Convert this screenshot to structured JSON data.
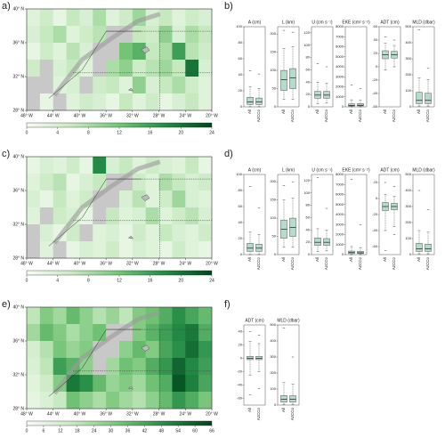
{
  "panels": [
    {
      "label": "a)",
      "type": "heatmap",
      "xlim": [
        -48,
        -20
      ],
      "ylim": [
        28,
        40
      ],
      "xticks": [
        {
          "value": -48,
          "label": "48° W"
        },
        {
          "value": -44,
          "label": "44° W"
        },
        {
          "value": -40,
          "label": "40° W"
        },
        {
          "value": -36,
          "label": "36° W"
        },
        {
          "value": -32,
          "label": "32° W"
        },
        {
          "value": -28,
          "label": "28° W"
        },
        {
          "value": -24,
          "label": "24° W"
        },
        {
          "value": -20,
          "label": "20° W"
        }
      ],
      "yticks": [
        {
          "value": 28,
          "label": "28° N"
        },
        {
          "value": 32,
          "label": "32° N"
        },
        {
          "value": 36,
          "label": "36° N"
        },
        {
          "value": 40,
          "label": "40° N"
        }
      ],
      "colormap": [
        "#f7fcf5",
        "#c7e9c0",
        "#74c476",
        "#238b45",
        "#00441b"
      ],
      "nodata_color": "#c8c8c8",
      "grid": [
        [
          3,
          5,
          2,
          6,
          4,
          8,
          3,
          5,
          9,
          4,
          6,
          3,
          5,
          4
        ],
        [
          4,
          6,
          8,
          3,
          5,
          7,
          null,
          null,
          6,
          5,
          10,
          4,
          8,
          6
        ],
        [
          2,
          5,
          3,
          7,
          4,
          null,
          null,
          12,
          14,
          6,
          8,
          16,
          7,
          5
        ],
        [
          5,
          null,
          4,
          6,
          3,
          null,
          8,
          10,
          5,
          7,
          9,
          6,
          20,
          4
        ],
        [
          null,
          null,
          3,
          4,
          null,
          5,
          6,
          3,
          10,
          4,
          6,
          8,
          5,
          3
        ],
        [
          null,
          2,
          null,
          3,
          5,
          4,
          2,
          6,
          3,
          5,
          2,
          4,
          6,
          3
        ]
      ],
      "colorbar": {
        "lim": [
          0,
          24
        ],
        "ticks": [
          0,
          4,
          8,
          12,
          16,
          20,
          24
        ]
      }
    },
    {
      "label": "b)",
      "type": "boxplot",
      "categories": [
        "All",
        "AzCCo"
      ],
      "color": "#b5dcca",
      "subplots": [
        {
          "title": "A (cm)",
          "ylim": [
            0,
            100
          ],
          "yticks": [
            0,
            20,
            40,
            60,
            80,
            100
          ],
          "boxes": [
            {
              "whislo": 0,
              "q1": 3,
              "med": 6,
              "q3": 12,
              "whishi": 25,
              "outliers": [
                45
              ]
            },
            {
              "whislo": 0,
              "q1": 3,
              "med": 6,
              "q3": 11,
              "whishi": 23,
              "outliers": [
                41
              ]
            }
          ]
        },
        {
          "title": "L (km)",
          "ylim": [
            0,
            220
          ],
          "yticks": [
            0,
            50,
            100,
            150,
            200
          ],
          "boxes": [
            {
              "whislo": 20,
              "q1": 45,
              "med": 75,
              "q3": 100,
              "whishi": 160,
              "outliers": [
                210
              ]
            },
            {
              "whislo": 20,
              "q1": 50,
              "med": 80,
              "q3": 105,
              "whishi": 165,
              "outliers": [
                205
              ]
            }
          ]
        },
        {
          "title": "U (cm s⁻¹)",
          "ylim": [
            0,
            130
          ],
          "yticks": [
            0,
            20,
            40,
            60,
            80,
            100,
            120
          ],
          "boxes": [
            {
              "whislo": 5,
              "q1": 14,
              "med": 19,
              "q3": 25,
              "whishi": 40,
              "outliers": [
                70
              ]
            },
            {
              "whislo": 6,
              "q1": 14,
              "med": 19,
              "q3": 25,
              "whishi": 38,
              "outliers": [
                65
              ]
            }
          ]
        },
        {
          "title": "EKE (cm² s⁻²)",
          "ylim": [
            0,
            8000
          ],
          "yticks": [
            0,
            1000,
            2000,
            3000,
            4000,
            5000,
            6000,
            7000,
            8000
          ],
          "boxes": [
            {
              "whislo": 0,
              "q1": 80,
              "med": 150,
              "q3": 300,
              "whishi": 700,
              "outliers": [
                2200
              ]
            },
            {
              "whislo": 0,
              "q1": 90,
              "med": 160,
              "q3": 320,
              "whishi": 650,
              "outliers": [
                1800
              ]
            }
          ]
        },
        {
          "title": "ADT (cm)",
          "ylim": [
            -60,
            60
          ],
          "yticks": [
            -60,
            -40,
            -20,
            0,
            20,
            40,
            60
          ],
          "boxes": [
            {
              "whislo": -5,
              "q1": 12,
              "med": 18,
              "q3": 24,
              "whishi": 35,
              "outliers": [
                45
              ]
            },
            {
              "whislo": 0,
              "q1": 13,
              "med": 18,
              "q3": 23,
              "whishi": 32,
              "outliers": [
                40
              ]
            }
          ]
        },
        {
          "title": "MLD (dbar)",
          "ylim": [
            0,
            500
          ],
          "yticks": [
            0,
            100,
            200,
            300,
            400,
            500
          ],
          "boxes": [
            {
              "whislo": 5,
              "q1": 20,
              "med": 40,
              "q3": 90,
              "whishi": 180,
              "outliers": [
                480
              ]
            },
            {
              "whislo": 5,
              "q1": 20,
              "med": 40,
              "q3": 85,
              "whishi": 170,
              "outliers": [
                240
              ]
            }
          ]
        }
      ]
    },
    {
      "label": "c)",
      "type": "heatmap",
      "xlim": [
        -48,
        -20
      ],
      "ylim": [
        28,
        40
      ],
      "xticks": [
        {
          "value": -48,
          "label": "48° W"
        },
        {
          "value": -44,
          "label": "44° W"
        },
        {
          "value": -40,
          "label": "40° W"
        },
        {
          "value": -36,
          "label": "36° W"
        },
        {
          "value": -32,
          "label": "32° W"
        },
        {
          "value": -28,
          "label": "28° W"
        },
        {
          "value": -24,
          "label": "24° W"
        },
        {
          "value": -20,
          "label": "20° W"
        }
      ],
      "yticks": [
        {
          "value": 28,
          "label": "28° N"
        },
        {
          "value": 32,
          "label": "32° N"
        },
        {
          "value": 36,
          "label": "36° N"
        },
        {
          "value": 40,
          "label": "40° N"
        }
      ],
      "colormap": [
        "#f7fcf5",
        "#c7e9c0",
        "#74c476",
        "#238b45",
        "#00441b"
      ],
      "nodata_color": "#c8c8c8",
      "grid": [
        [
          2,
          4,
          3,
          5,
          2,
          18,
          4,
          6,
          3,
          5,
          4,
          3,
          6,
          2
        ],
        [
          3,
          5,
          7,
          2,
          4,
          6,
          null,
          null,
          5,
          3,
          8,
          6,
          4,
          5
        ],
        [
          4,
          2,
          6,
          3,
          5,
          null,
          null,
          4,
          7,
          3,
          5,
          9,
          4,
          3
        ],
        [
          3,
          null,
          5,
          4,
          2,
          null,
          6,
          3,
          4,
          8,
          3,
          5,
          7,
          4
        ],
        [
          null,
          4,
          2,
          5,
          null,
          3,
          4,
          2,
          5,
          3,
          6,
          4,
          3,
          5
        ],
        [
          null,
          3,
          null,
          2,
          4,
          3,
          5,
          2,
          4,
          3,
          2,
          5,
          3,
          2
        ]
      ],
      "colorbar": {
        "lim": [
          0,
          24
        ],
        "ticks": [
          0,
          4,
          8,
          12,
          16,
          20,
          24
        ]
      }
    },
    {
      "label": "d)",
      "type": "boxplot",
      "categories": [
        "All",
        "AzCCo"
      ],
      "color": "#b5dcca",
      "subplots": [
        {
          "title": "A (cm)",
          "ylim": [
            0,
            100
          ],
          "yticks": [
            0,
            20,
            40,
            60,
            80,
            100
          ],
          "boxes": [
            {
              "whislo": 0,
              "q1": 4,
              "med": 8,
              "q3": 14,
              "whishi": 28,
              "outliers": [
                85
              ]
            },
            {
              "whislo": 0,
              "q1": 4,
              "med": 8,
              "q3": 13,
              "whishi": 25,
              "outliers": [
                58
              ]
            }
          ]
        },
        {
          "title": "L (km)",
          "ylim": [
            0,
            220
          ],
          "yticks": [
            0,
            50,
            100,
            150,
            200
          ],
          "boxes": [
            {
              "whislo": 20,
              "q1": 45,
              "med": 70,
              "q3": 95,
              "whishi": 150,
              "outliers": [
                190
              ]
            },
            {
              "whislo": 20,
              "q1": 50,
              "med": 75,
              "q3": 100,
              "whishi": 155,
              "outliers": [
                200
              ]
            }
          ]
        },
        {
          "title": "U (cm s⁻¹)",
          "ylim": [
            0,
            130
          ],
          "yticks": [
            0,
            20,
            40,
            60,
            80,
            100,
            120
          ],
          "boxes": [
            {
              "whislo": 5,
              "q1": 15,
              "med": 20,
              "q3": 27,
              "whishi": 42,
              "outliers": [
                125
              ]
            },
            {
              "whislo": 6,
              "q1": 15,
              "med": 20,
              "q3": 26,
              "whishi": 40,
              "outliers": [
                75
              ]
            }
          ]
        },
        {
          "title": "EKE (cm² s⁻²)",
          "ylim": [
            0,
            8000
          ],
          "yticks": [
            0,
            1000,
            2000,
            3000,
            4000,
            5000,
            6000,
            7000,
            8000
          ],
          "boxes": [
            {
              "whislo": 0,
              "q1": 100,
              "med": 200,
              "q3": 350,
              "whishi": 800,
              "outliers": [
                7500
              ]
            },
            {
              "whislo": 0,
              "q1": 100,
              "med": 180,
              "q3": 330,
              "whishi": 700,
              "outliers": [
                3000
              ]
            }
          ]
        },
        {
          "title": "ADT (cm)",
          "ylim": [
            -70,
            30
          ],
          "yticks": [
            -60,
            -40,
            -20,
            0,
            20
          ],
          "boxes": [
            {
              "whislo": -40,
              "q1": -15,
              "med": -10,
              "q3": -5,
              "whishi": 5,
              "outliers": [
                -65,
                20
              ]
            },
            {
              "whislo": -35,
              "q1": -14,
              "med": -10,
              "q3": -6,
              "whishi": 3,
              "outliers": [
                -45,
                15
              ]
            }
          ]
        },
        {
          "title": "MLD (dbar)",
          "ylim": [
            0,
            500
          ],
          "yticks": [
            0,
            100,
            200,
            300,
            400,
            500
          ],
          "boxes": [
            {
              "whislo": 5,
              "q1": 20,
              "med": 35,
              "q3": 70,
              "whishi": 150,
              "outliers": [
                400
              ]
            },
            {
              "whislo": 5,
              "q1": 20,
              "med": 35,
              "q3": 65,
              "whishi": 140,
              "outliers": [
                280
              ]
            }
          ]
        }
      ]
    },
    {
      "label": "e)",
      "type": "heatmap",
      "xlim": [
        -48,
        -20
      ],
      "ylim": [
        28,
        40
      ],
      "xticks": [
        {
          "value": -48,
          "label": "48° W"
        },
        {
          "value": -44,
          "label": "44° W"
        },
        {
          "value": -40,
          "label": "40° W"
        },
        {
          "value": -36,
          "label": "36° W"
        },
        {
          "value": -32,
          "label": "32° W"
        },
        {
          "value": -28,
          "label": "28° W"
        },
        {
          "value": -24,
          "label": "24° W"
        },
        {
          "value": -20,
          "label": "20° W"
        }
      ],
      "yticks": [
        {
          "value": 28,
          "label": "28° N"
        },
        {
          "value": 32,
          "label": "32° N"
        },
        {
          "value": 36,
          "label": "36° N"
        },
        {
          "value": 40,
          "label": "40° N"
        }
      ],
      "colormap": [
        "#f7fcf5",
        "#c7e9c0",
        "#74c476",
        "#238b45",
        "#00441b"
      ],
      "nodata_color": "#c8c8c8",
      "grid": [
        [
          18,
          30,
          24,
          36,
          28,
          20,
          26,
          18,
          30,
          34,
          40,
          48,
          42,
          36
        ],
        [
          24,
          36,
          30,
          22,
          28,
          34,
          null,
          null,
          30,
          38,
          44,
          50,
          54,
          40
        ],
        [
          12,
          20,
          32,
          26,
          30,
          null,
          null,
          28,
          36,
          30,
          42,
          48,
          56,
          46
        ],
        [
          10,
          18,
          44,
          38,
          28,
          null,
          24,
          34,
          30,
          40,
          46,
          58,
          50,
          44
        ],
        [
          8,
          14,
          30,
          54,
          48,
          36,
          26,
          30,
          24,
          34,
          40,
          62,
          52,
          42
        ],
        [
          6,
          10,
          16,
          34,
          28,
          22,
          30,
          24,
          20,
          28,
          36,
          46,
          40,
          32
        ]
      ],
      "colorbar": {
        "lim": [
          0,
          66
        ],
        "ticks": [
          0,
          6,
          12,
          18,
          24,
          30,
          36,
          42,
          48,
          54,
          60,
          66
        ]
      }
    },
    {
      "label": "f)",
      "type": "boxplot",
      "categories": [
        "All",
        "AzCCo"
      ],
      "color": "#b5dcca",
      "subplots": [
        {
          "title": "ADT (cm)",
          "ylim": [
            -70,
            50
          ],
          "yticks": [
            -60,
            -40,
            -20,
            0,
            20,
            40
          ],
          "boxes": [
            {
              "whislo": -25,
              "q1": -2,
              "med": 0,
              "q3": 3,
              "whishi": 25,
              "outliers": [
                -55,
                40
              ]
            },
            {
              "whislo": -20,
              "q1": -2,
              "med": 0,
              "q3": 3,
              "whishi": 22,
              "outliers": [
                -45,
                35
              ]
            }
          ]
        },
        {
          "title": "MLD (dbar)",
          "ylim": [
            0,
            500
          ],
          "yticks": [
            0,
            100,
            200,
            300,
            400,
            500
          ],
          "boxes": [
            {
              "whislo": 5,
              "q1": 18,
              "med": 35,
              "q3": 60,
              "whishi": 140,
              "outliers": [
                480
              ]
            },
            {
              "whislo": 5,
              "q1": 18,
              "med": 35,
              "q3": 58,
              "whishi": 130,
              "outliers": [
                300
              ]
            }
          ]
        }
      ]
    }
  ]
}
